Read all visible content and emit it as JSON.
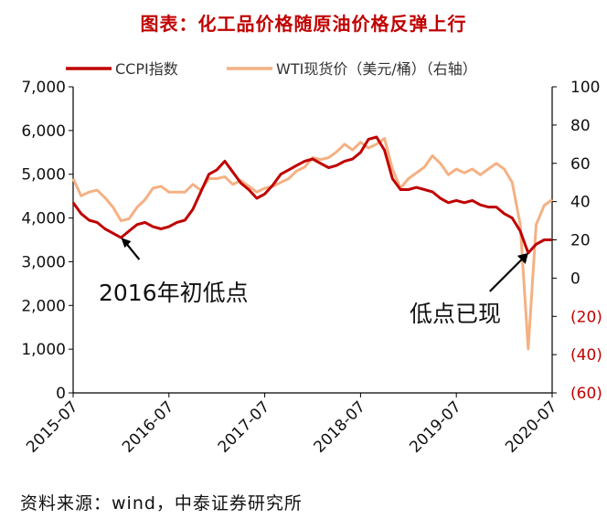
{
  "title": "图表：化工品价格随原油价格反弹上行",
  "source": "资料来源：wind，中泰证券研究所",
  "colors": {
    "ccpi": "#c00000",
    "wti": "#f4b183",
    "neg": "#c00000",
    "title": "#c00000"
  },
  "chart_data": {
    "type": "line",
    "title": "图表：化工品价格随原油价格反弹上行",
    "x_ticks": [
      "2015-07",
      "2016-07",
      "2017-07",
      "2018-07",
      "2019-07",
      "2020-07"
    ],
    "left_axis": {
      "ylim": [
        0,
        7000
      ],
      "ticks": [
        "0",
        "1,000",
        "2,000",
        "3,000",
        "4,000",
        "5,000",
        "6,000",
        "7,000"
      ]
    },
    "right_axis": {
      "ylim": [
        -60,
        100
      ],
      "ticks": [
        "(60)",
        "(40)",
        "(20)",
        "0",
        "20",
        "40",
        "60",
        "80",
        "100"
      ]
    },
    "legend": {
      "position": "top",
      "items": [
        "CCPI指数",
        "WTI现货价（美元/桶）（右轴）"
      ]
    },
    "annotations": [
      {
        "text": "2016年初低点",
        "point": [
          "2016-01",
          3550
        ]
      },
      {
        "text": "低点已现",
        "point": [
          "2020-04",
          3200
        ]
      }
    ],
    "series": [
      {
        "name": "CCPI指数",
        "axis": "left",
        "points": [
          [
            "2015-07",
            4350
          ],
          [
            "2015-08",
            4100
          ],
          [
            "2015-09",
            3950
          ],
          [
            "2015-10",
            3900
          ],
          [
            "2015-11",
            3750
          ],
          [
            "2015-12",
            3650
          ],
          [
            "2016-01",
            3550
          ],
          [
            "2016-02",
            3700
          ],
          [
            "2016-03",
            3850
          ],
          [
            "2016-04",
            3900
          ],
          [
            "2016-05",
            3800
          ],
          [
            "2016-06",
            3750
          ],
          [
            "2016-07",
            3800
          ],
          [
            "2016-08",
            3900
          ],
          [
            "2016-09",
            3950
          ],
          [
            "2016-10",
            4200
          ],
          [
            "2016-11",
            4600
          ],
          [
            "2016-12",
            5000
          ],
          [
            "2017-01",
            5100
          ],
          [
            "2017-02",
            5300
          ],
          [
            "2017-03",
            5050
          ],
          [
            "2017-04",
            4800
          ],
          [
            "2017-05",
            4650
          ],
          [
            "2017-06",
            4450
          ],
          [
            "2017-07",
            4550
          ],
          [
            "2017-08",
            4750
          ],
          [
            "2017-09",
            5000
          ],
          [
            "2017-10",
            5100
          ],
          [
            "2017-11",
            5200
          ],
          [
            "2017-12",
            5300
          ],
          [
            "2018-01",
            5350
          ],
          [
            "2018-02",
            5250
          ],
          [
            "2018-03",
            5150
          ],
          [
            "2018-04",
            5200
          ],
          [
            "2018-05",
            5300
          ],
          [
            "2018-06",
            5350
          ],
          [
            "2018-07",
            5500
          ],
          [
            "2018-08",
            5800
          ],
          [
            "2018-09",
            5850
          ],
          [
            "2018-10",
            5550
          ],
          [
            "2018-11",
            4900
          ],
          [
            "2018-12",
            4650
          ],
          [
            "2019-01",
            4650
          ],
          [
            "2019-02",
            4700
          ],
          [
            "2019-03",
            4650
          ],
          [
            "2019-04",
            4600
          ],
          [
            "2019-05",
            4450
          ],
          [
            "2019-06",
            4350
          ],
          [
            "2019-07",
            4400
          ],
          [
            "2019-08",
            4350
          ],
          [
            "2019-09",
            4400
          ],
          [
            "2019-10",
            4300
          ],
          [
            "2019-11",
            4250
          ],
          [
            "2019-12",
            4250
          ],
          [
            "2020-01",
            4100
          ],
          [
            "2020-02",
            4000
          ],
          [
            "2020-03",
            3700
          ],
          [
            "2020-04",
            3200
          ],
          [
            "2020-05",
            3400
          ],
          [
            "2020-06",
            3500
          ],
          [
            "2020-07",
            3500
          ]
        ]
      },
      {
        "name": "WTI现货价（美元/桶）（右轴）",
        "axis": "right",
        "points": [
          [
            "2015-07",
            52
          ],
          [
            "2015-08",
            43
          ],
          [
            "2015-09",
            45
          ],
          [
            "2015-10",
            46
          ],
          [
            "2015-11",
            42
          ],
          [
            "2015-12",
            37
          ],
          [
            "2016-01",
            30
          ],
          [
            "2016-02",
            31
          ],
          [
            "2016-03",
            37
          ],
          [
            "2016-04",
            41
          ],
          [
            "2016-05",
            47
          ],
          [
            "2016-06",
            48
          ],
          [
            "2016-07",
            45
          ],
          [
            "2016-08",
            45
          ],
          [
            "2016-09",
            45
          ],
          [
            "2016-10",
            49
          ],
          [
            "2016-11",
            46
          ],
          [
            "2016-12",
            52
          ],
          [
            "2017-01",
            52
          ],
          [
            "2017-02",
            53
          ],
          [
            "2017-03",
            49
          ],
          [
            "2017-04",
            51
          ],
          [
            "2017-05",
            48
          ],
          [
            "2017-06",
            45
          ],
          [
            "2017-07",
            47
          ],
          [
            "2017-08",
            48
          ],
          [
            "2017-09",
            50
          ],
          [
            "2017-10",
            52
          ],
          [
            "2017-11",
            56
          ],
          [
            "2017-12",
            58
          ],
          [
            "2018-01",
            63
          ],
          [
            "2018-02",
            62
          ],
          [
            "2018-03",
            63
          ],
          [
            "2018-04",
            66
          ],
          [
            "2018-05",
            70
          ],
          [
            "2018-06",
            67
          ],
          [
            "2018-07",
            71
          ],
          [
            "2018-08",
            68
          ],
          [
            "2018-09",
            70
          ],
          [
            "2018-10",
            73
          ],
          [
            "2018-11",
            57
          ],
          [
            "2018-12",
            47
          ],
          [
            "2019-01",
            52
          ],
          [
            "2019-02",
            55
          ],
          [
            "2019-03",
            58
          ],
          [
            "2019-04",
            64
          ],
          [
            "2019-05",
            60
          ],
          [
            "2019-06",
            54
          ],
          [
            "2019-07",
            57
          ],
          [
            "2019-08",
            55
          ],
          [
            "2019-09",
            57
          ],
          [
            "2019-10",
            54
          ],
          [
            "2019-11",
            57
          ],
          [
            "2019-12",
            60
          ],
          [
            "2020-01",
            57
          ],
          [
            "2020-02",
            50
          ],
          [
            "2020-03",
            28
          ],
          [
            "2020-04",
            -37
          ],
          [
            "2020-05",
            28
          ],
          [
            "2020-06",
            38
          ],
          [
            "2020-07",
            41
          ]
        ]
      }
    ]
  }
}
